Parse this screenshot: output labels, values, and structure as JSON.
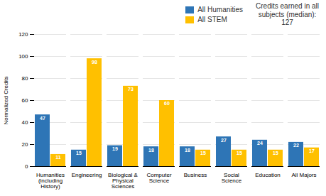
{
  "chart_data": {
    "type": "bar",
    "categories": [
      "Humanities\n(including\nHistory)",
      "Engineering",
      "Biological &\nPhysical\nSciences",
      "Computer\nScience",
      "Business",
      "Social\nScience",
      "Education",
      "All Majors"
    ],
    "series": [
      {
        "name": "All Humanities",
        "color": "#2E75B6",
        "values": [
          47,
          15,
          19,
          18,
          18,
          27,
          24,
          22
        ]
      },
      {
        "name": "All STEM",
        "color": "#FFC000",
        "values": [
          11,
          98,
          73,
          60,
          15,
          15,
          15,
          17
        ]
      }
    ],
    "ylabel": "Normalized Credits",
    "ylim": [
      0,
      120
    ],
    "yticks": [
      0,
      20,
      40,
      60,
      80,
      100,
      120
    ],
    "grid": true,
    "legend": "upper right",
    "data_labels": true,
    "annotation": "Credits earned in all\nsubjects (median):\n127"
  }
}
